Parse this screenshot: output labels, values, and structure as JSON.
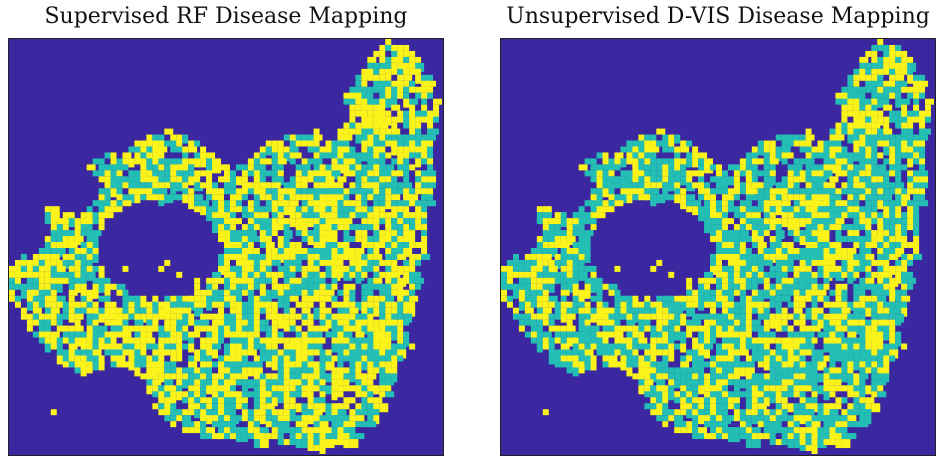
{
  "panels": [
    {
      "title": "Supervised RF Disease Mapping",
      "image": "classification map: dark purple background with yellow (healthy) and teal (diseased) regions",
      "teal_fraction": 0.42
    },
    {
      "title": "Unsupervised D-VIS Disease Mapping",
      "image": "classification map: dark purple background with yellow (healthy) and teal (diseased) regions",
      "teal_fraction": 0.55
    }
  ],
  "colors": {
    "background": "#3b27a0",
    "healthy": "#fbf319",
    "disease": "#23bfb4",
    "frame": "#222222"
  }
}
